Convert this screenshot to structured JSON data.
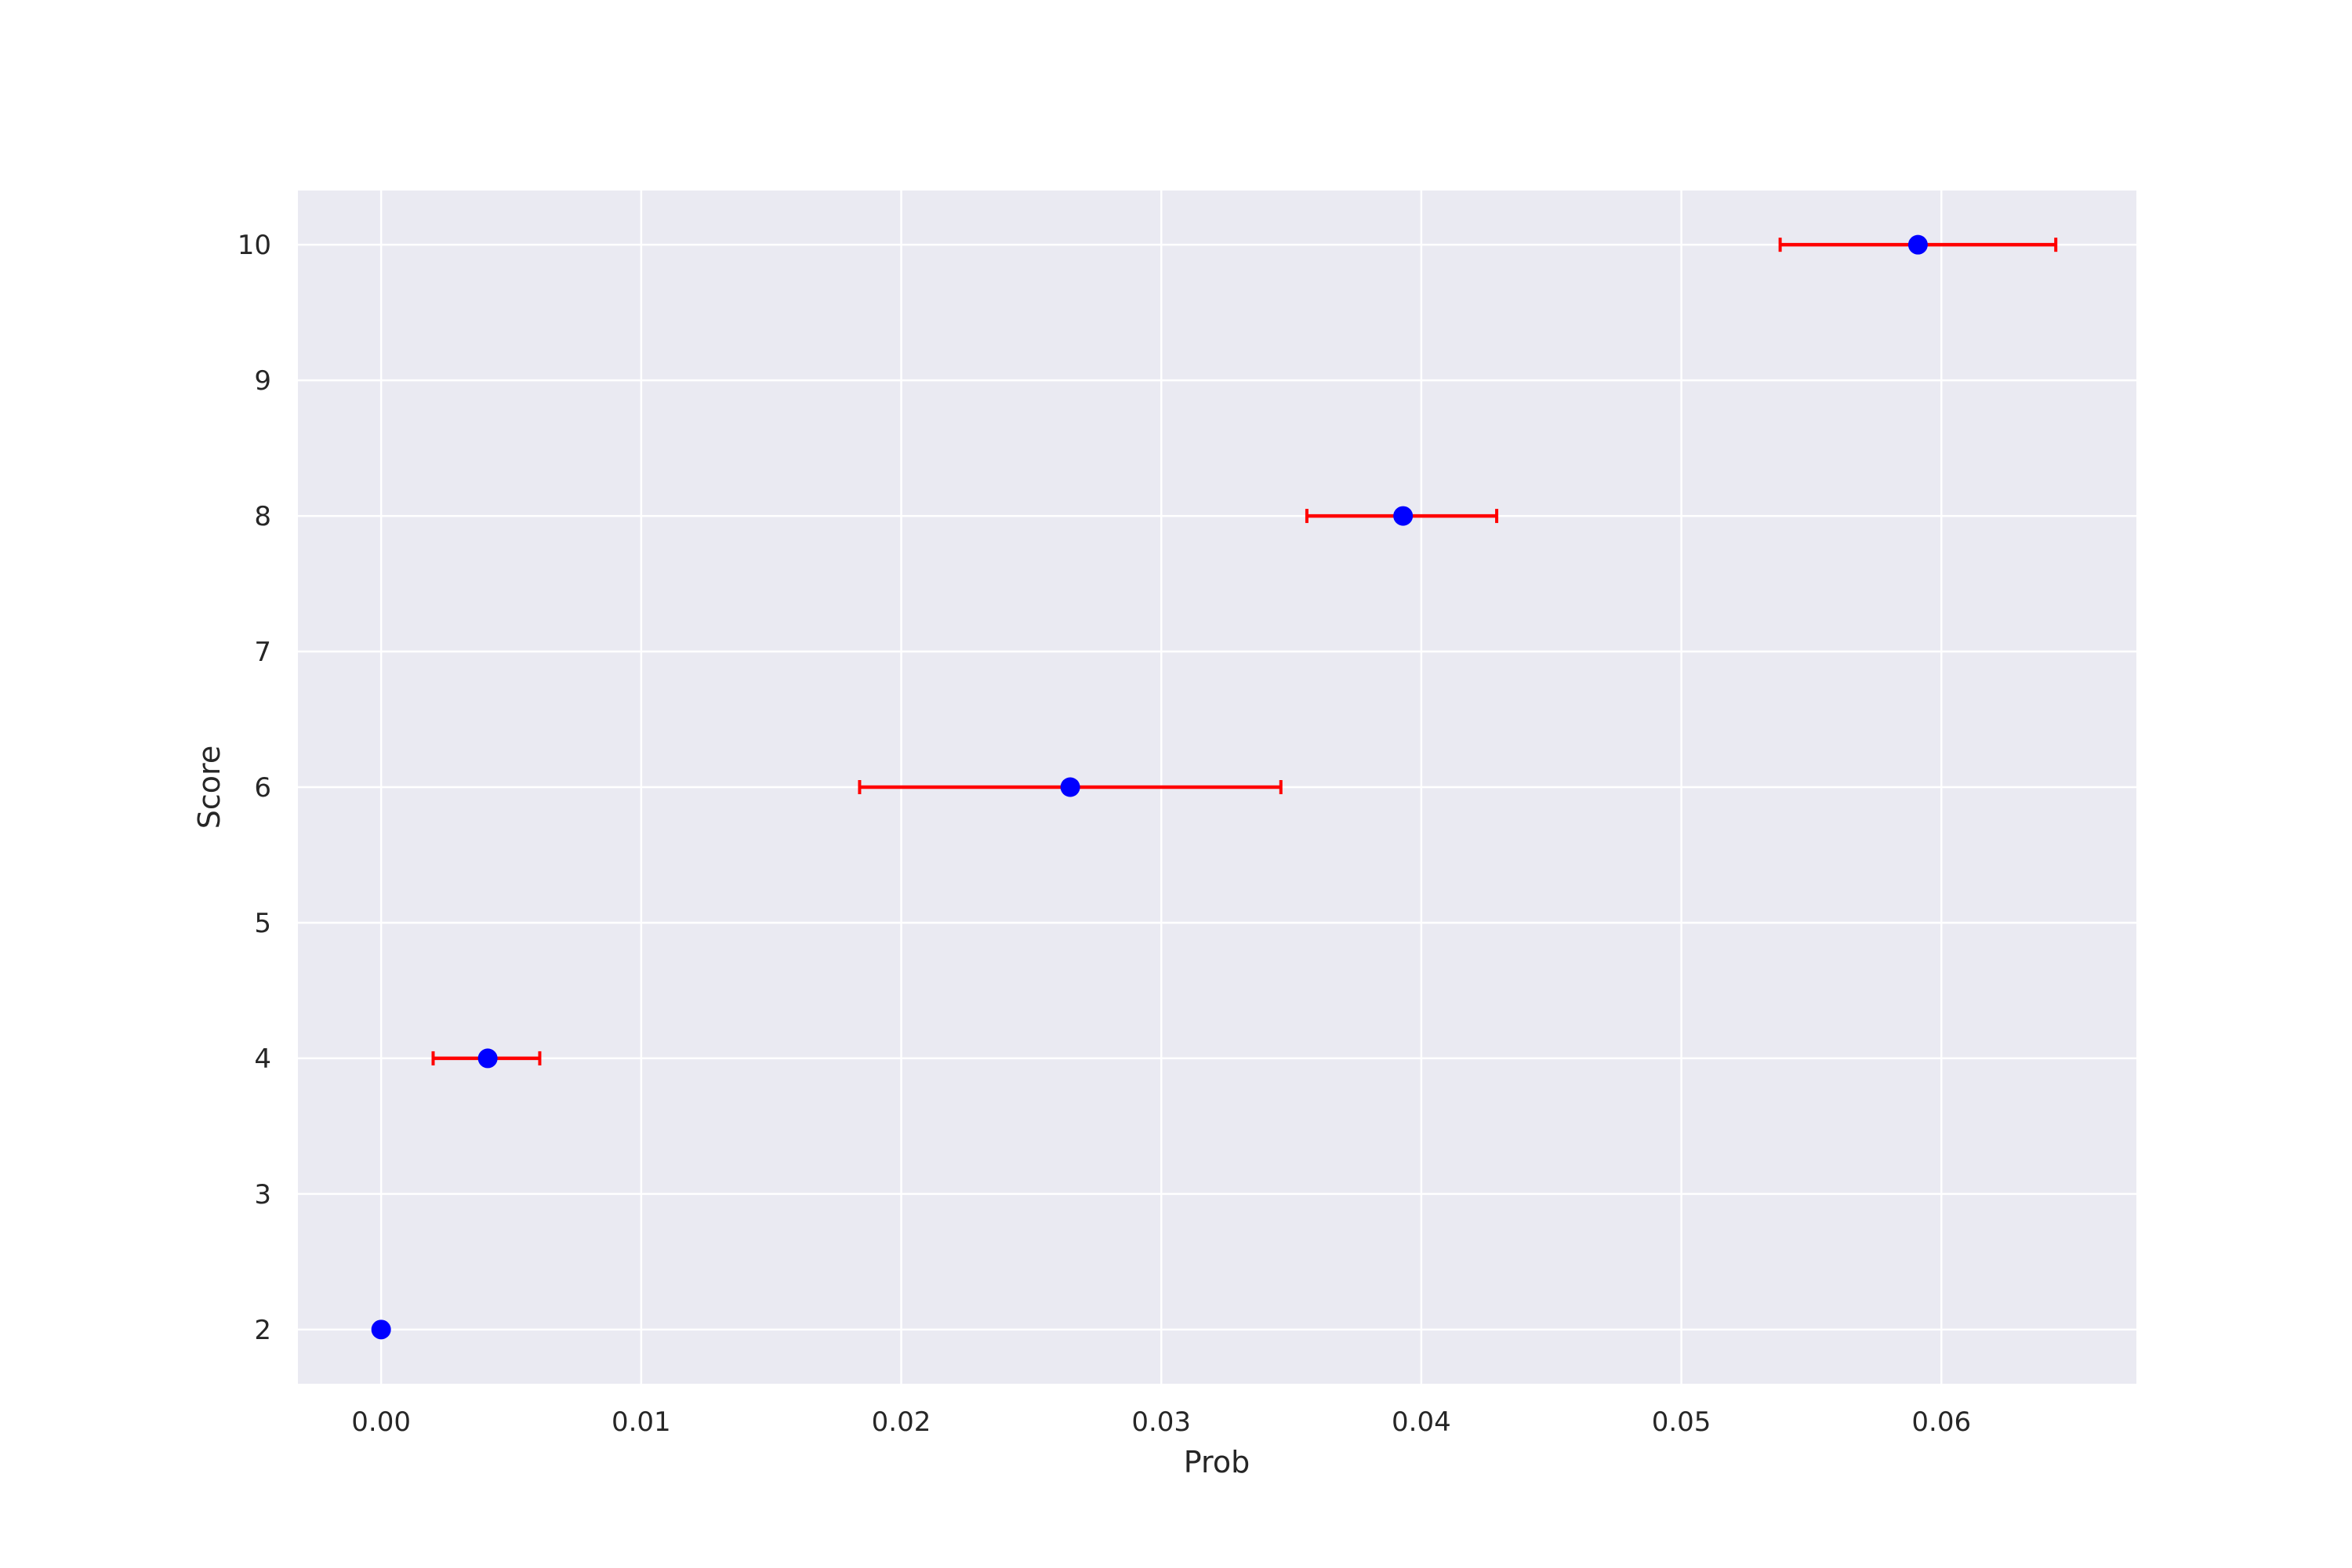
{
  "chart_data": {
    "type": "scatter",
    "title": "",
    "xlabel": "Prob",
    "ylabel": "Score",
    "xlim": [
      -0.0032,
      0.0675
    ],
    "ylim": [
      1.6,
      10.4
    ],
    "x_ticks": [
      0.0,
      0.01,
      0.02,
      0.03,
      0.04,
      0.05,
      0.06
    ],
    "x_tick_labels": [
      "0.00",
      "0.01",
      "0.02",
      "0.03",
      "0.04",
      "0.05",
      "0.06"
    ],
    "y_ticks": [
      2,
      3,
      4,
      5,
      6,
      7,
      8,
      9,
      10
    ],
    "y_tick_labels": [
      "2",
      "3",
      "4",
      "5",
      "6",
      "7",
      "8",
      "9",
      "10"
    ],
    "grid": true,
    "legend": "none",
    "points": [
      {
        "x": 0.0,
        "y": 2,
        "xerr_low": 0.0,
        "xerr_high": 0.0
      },
      {
        "x": 0.0041,
        "y": 4,
        "xerr_low": 0.0021,
        "xerr_high": 0.002
      },
      {
        "x": 0.0265,
        "y": 6,
        "xerr_low": 0.0081,
        "xerr_high": 0.0081
      },
      {
        "x": 0.0393,
        "y": 8,
        "xerr_low": 0.0037,
        "xerr_high": 0.0036
      },
      {
        "x": 0.0591,
        "y": 10,
        "xerr_low": 0.0053,
        "xerr_high": 0.0053
      }
    ],
    "colors": {
      "point": "#0000ff",
      "errorbar": "#ff0000",
      "plot_background": "#eaeaf2",
      "grid": "#ffffff",
      "text": "#262626"
    }
  }
}
